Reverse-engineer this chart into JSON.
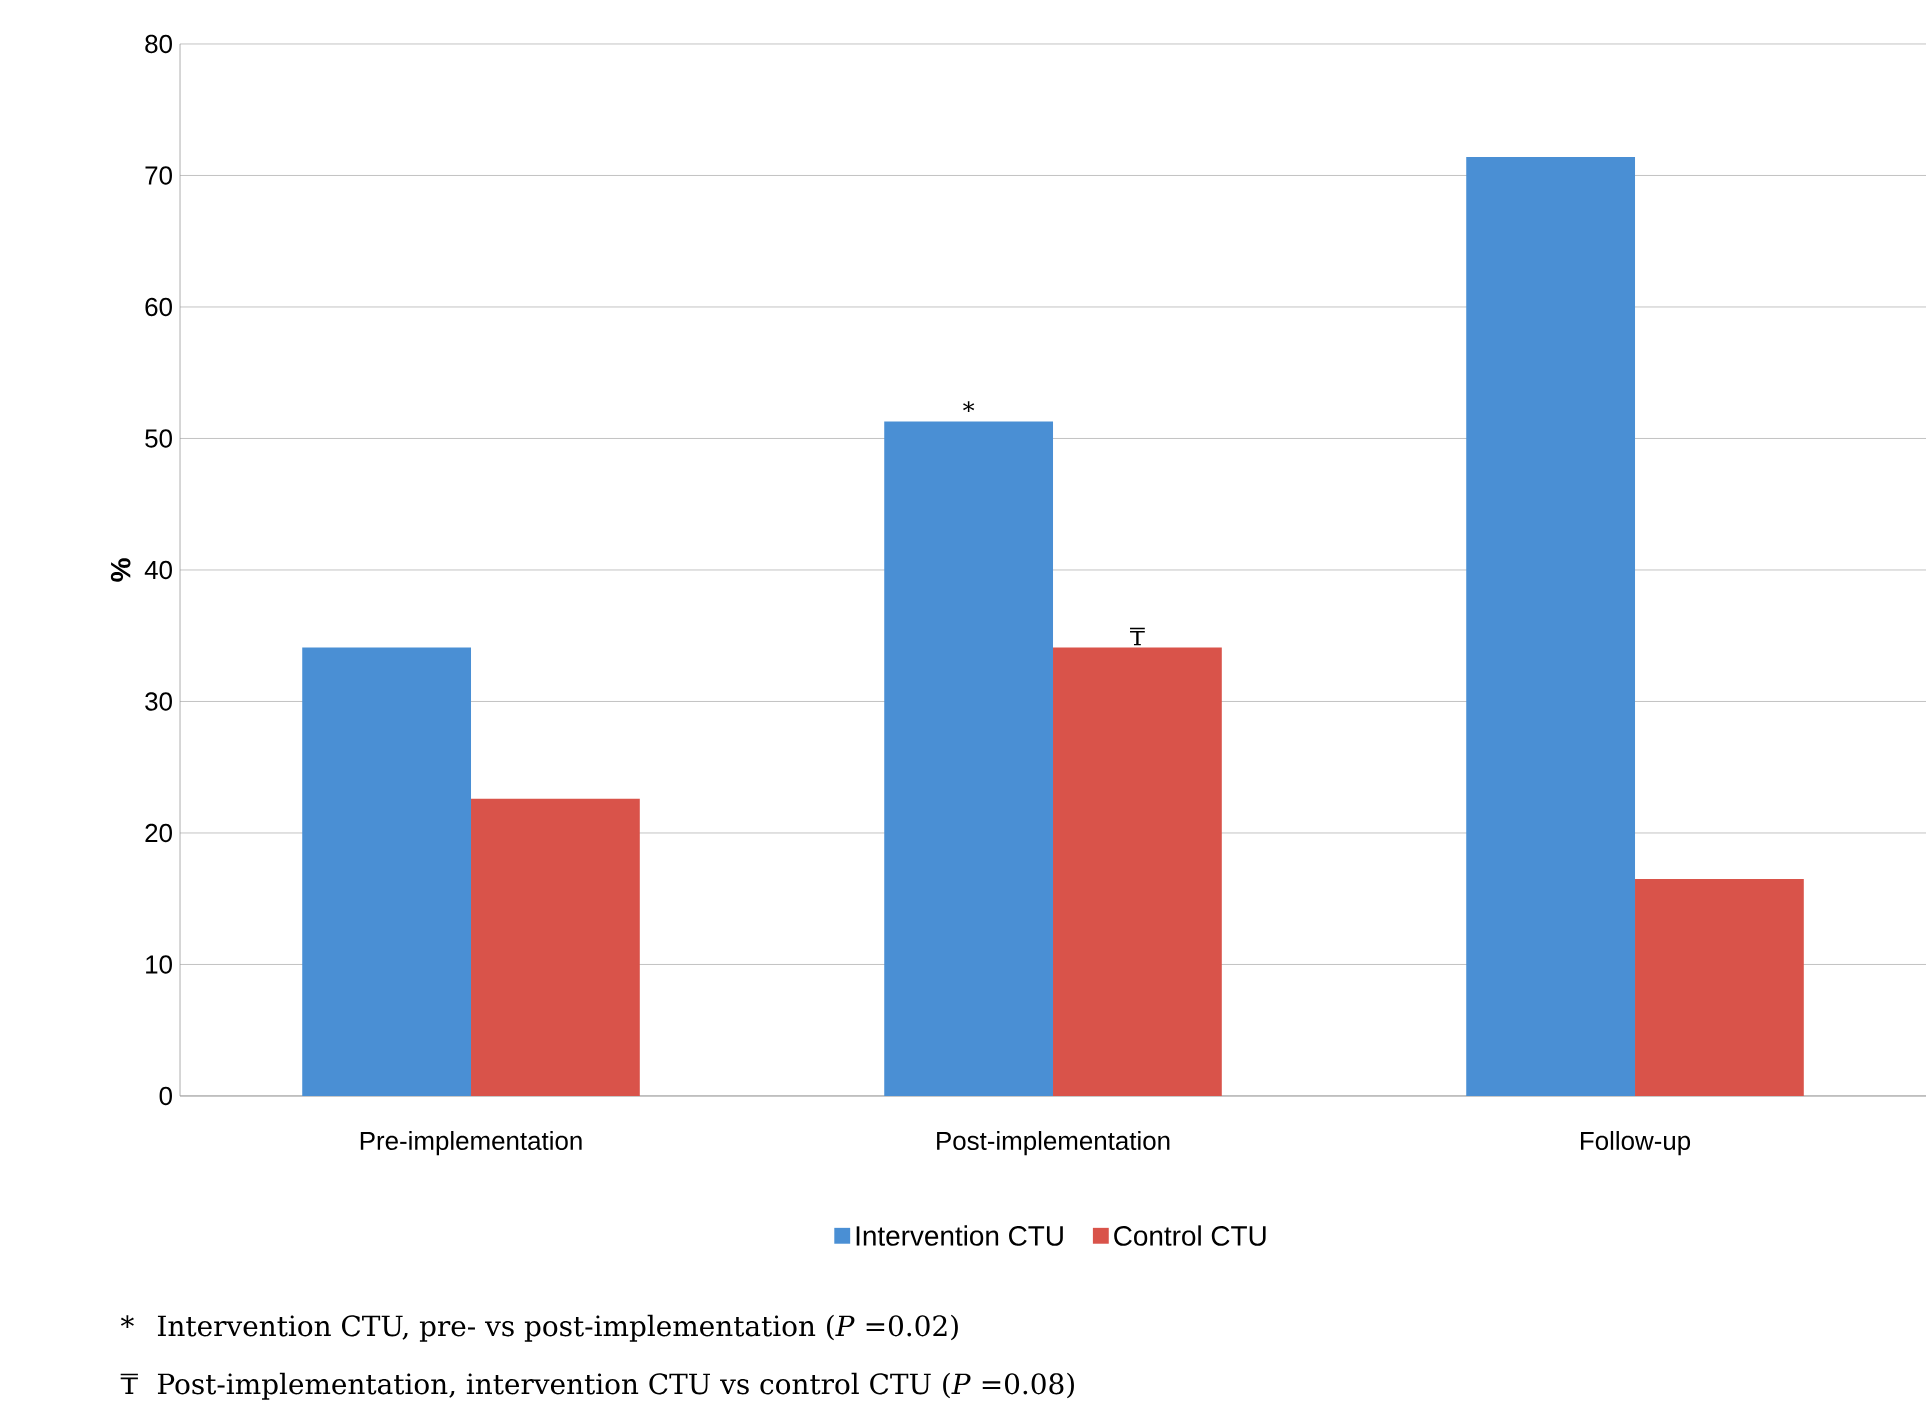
{
  "chart_data": {
    "type": "bar",
    "ylabel": "%",
    "categories": [
      "Pre-implementation",
      "Post-implementation",
      "Follow-up"
    ],
    "series": [
      {
        "name": "Intervention CTU",
        "color": "#4a8fd4",
        "values": [
          34.1,
          51.3,
          71.4
        ]
      },
      {
        "name": "Control CTU",
        "color": "#d9534a",
        "values": [
          22.6,
          34.1,
          16.5
        ]
      }
    ],
    "ylim": [
      0,
      80
    ],
    "yticks": [
      0,
      10,
      20,
      30,
      40,
      50,
      60,
      70,
      80
    ],
    "grid": "y",
    "legend": "bottom",
    "annotations": [
      "*",
      "₸",
      "*",
      "Intervention CTU, pre- vs post-implementation (*P* =0.02)",
      "₸",
      "Post-implementation, intervention CTU vs control CTU (*P* =0.08)"
    ]
  }
}
